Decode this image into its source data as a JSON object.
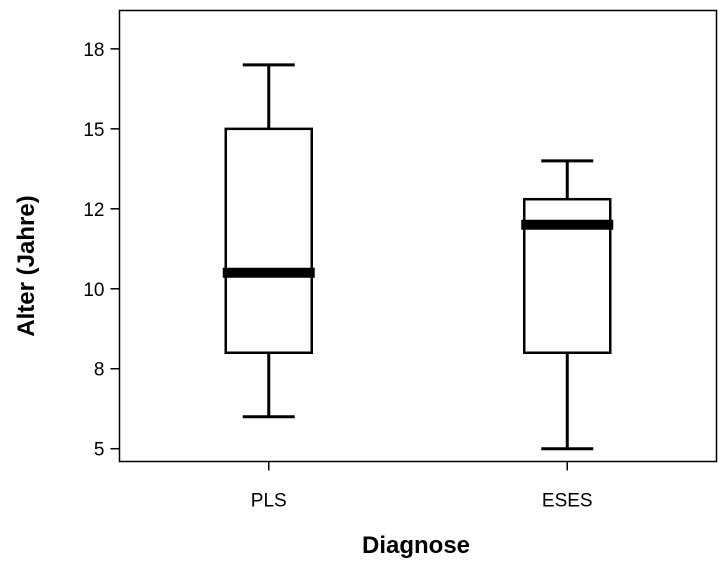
{
  "chart_data": {
    "type": "boxplot",
    "title": "",
    "xlabel": "Diagnose",
    "ylabel": "Alter (Jahre)",
    "ylim": [
      4.6,
      18.7
    ],
    "y_ticks": [
      5,
      7.5,
      10,
      12.5,
      15,
      17.5
    ],
    "y_tick_labels": [
      "5",
      "8",
      "10",
      "12",
      "15",
      "18"
    ],
    "grid": false,
    "categories": [
      "PLS",
      "ESES"
    ],
    "boxes": [
      {
        "category": "PLS",
        "whisker_low": 6.0,
        "q1": 8.0,
        "median": 10.5,
        "q3": 15.0,
        "whisker_high": 17.0
      },
      {
        "category": "ESES",
        "whisker_low": 5.0,
        "q1": 8.0,
        "median": 12.0,
        "q3": 12.8,
        "whisker_high": 14.0
      }
    ]
  }
}
